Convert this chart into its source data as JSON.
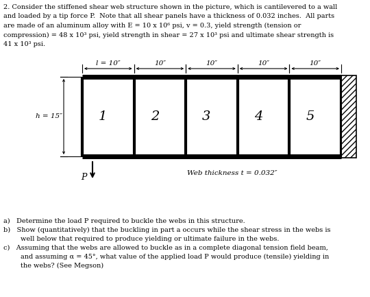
{
  "header": "2. Consider the stiffened shear web structure shown in the picture, which is cantilevered to a wall\nand loaded by a tip force P.  Note that all shear panels have a thickness of 0.032 inches.  All parts\nare made of an aluminum alloy with E = 10 x 10⁶ psi, v = 0.3, yield strength (tension or\ncompression) = 48 x 10³ psi, yield strength in shear = 27 x 10³ psi and ultimate shear strength is\n41 x 10³ psi.",
  "panel_labels": [
    "1",
    "2",
    "3",
    "4",
    "5"
  ],
  "span_labels": [
    "l = 10″",
    "10″",
    "10″",
    "10″",
    "10″"
  ],
  "h_label": "h = 15″",
  "thickness_label": "Web thickness t = 0.032″",
  "P_label": "P",
  "qa": "a)   Determine the load P required to buckle the webs in this structure.",
  "qb_line1": "b)   Show (quantitatively) that the buckling in part a occurs while the shear stress in the webs is",
  "qb_line2": "        well below that required to produce yielding or ultimate failure in the webs.",
  "qc_line1": "c)   Assuming that the webs are allowed to buckle as in a complete diagonal tension field beam,",
  "qc_line2": "        and assuming α = 45°, what value of the applied load P would produce (tensile) yielding in",
  "qc_line3": "        the webs? (See Megson)",
  "bg_color": "#ffffff"
}
